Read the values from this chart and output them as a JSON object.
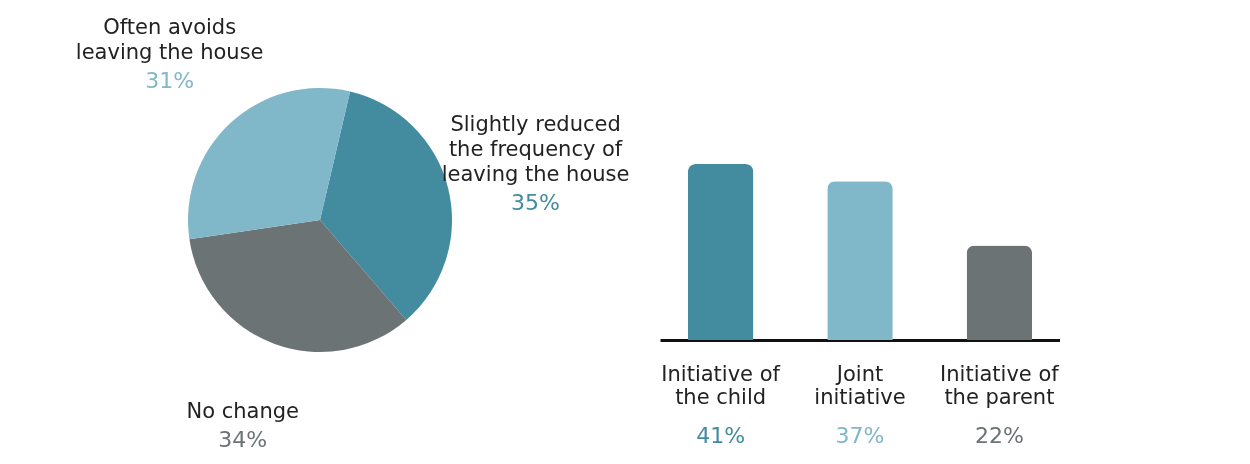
{
  "chart_data": [
    {
      "type": "pie",
      "categories": [
        "Slightly reduced the frequency of leaving the house",
        "No change",
        "Often avoids leaving the house"
      ],
      "values": [
        35,
        34,
        31
      ],
      "value_labels": [
        "35%",
        "34%",
        "31%"
      ],
      "colors": [
        "#438b9f",
        "#6b7375",
        "#80b7c9"
      ],
      "legend": false
    },
    {
      "type": "bar",
      "categories": [
        "Initiative of the child",
        "Joint initiative",
        "Initiative of the parent"
      ],
      "values": [
        41,
        37,
        22
      ],
      "value_labels": [
        "41%",
        "37%",
        "22%"
      ],
      "colors": [
        "#438b9f",
        "#80b7c9",
        "#6b7375"
      ],
      "legend": false
    }
  ]
}
